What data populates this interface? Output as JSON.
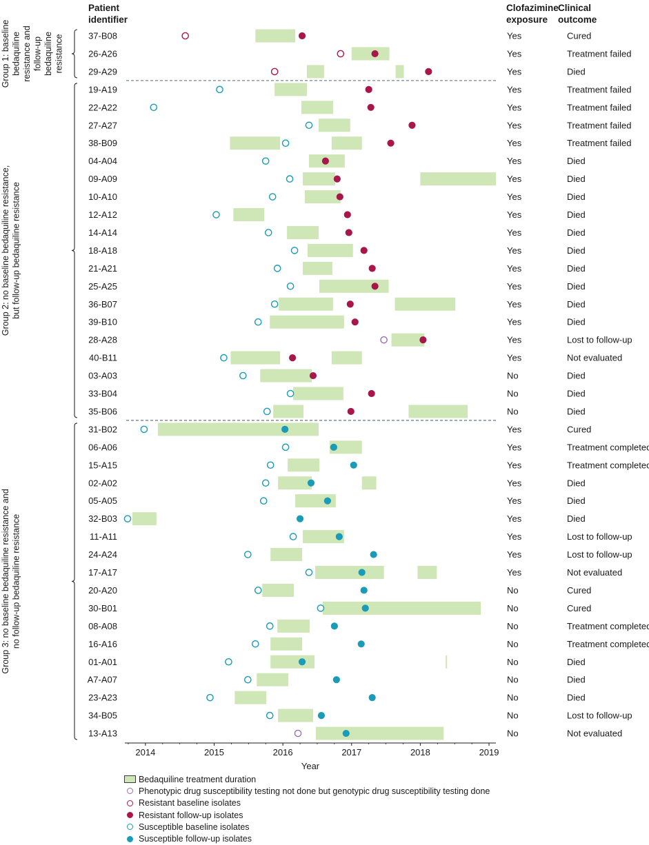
{
  "column_headers": {
    "patient": [
      "Patient",
      "identifier"
    ],
    "clofazimine": [
      "Clofazimine",
      "exposure"
    ],
    "outcome": [
      "Clinical",
      "outcome"
    ]
  },
  "groups": [
    {
      "label_lines": [
        "Group 1: baseline",
        "bedaquiline",
        "resistance and",
        "follow-up",
        "bedaquiline",
        "resistance"
      ]
    },
    {
      "label_lines": [
        "Group 2: no baseline bedaquiline resistance,",
        "but follow-up bedaquiline resistance"
      ]
    },
    {
      "label_lines": [
        "Group 3: no baseline bedaquiline resistance and",
        "no follow-up bedaquiline resistance"
      ]
    }
  ],
  "colors": {
    "bar_fill": "#cfe6b6",
    "resistant": "#a8174a",
    "susceptible": "#1a9bb8",
    "phenotypic_not_done": "#9a6fb0",
    "separator": "#55607a"
  },
  "chart_data": {
    "type": "timeline",
    "xlabel": "Year",
    "xlim": [
      2013.7,
      2019.1
    ],
    "xticks": [
      "2014",
      "2015",
      "2016",
      "2017",
      "2018",
      "2019"
    ],
    "legend": [
      {
        "symbol": "bar",
        "label": "Bedaquiline treatment duration"
      },
      {
        "symbol": "open-purple",
        "label": "Phenotypic drug susceptibility testing not done but genotypic drug susceptibility testing done"
      },
      {
        "symbol": "open-resistant",
        "label": "Resistant baseline isolates"
      },
      {
        "symbol": "filled-resistant",
        "label": "Resistant follow-up isolates"
      },
      {
        "symbol": "open-susceptible",
        "label": "Susceptible baseline isolates"
      },
      {
        "symbol": "filled-susceptible",
        "label": "Susceptible follow-up isolates"
      }
    ],
    "patients": [
      {
        "id": "37-B08",
        "group": 1,
        "clofazimine": "Yes",
        "outcome": "Cured",
        "bars": [
          [
            2015.6,
            2016.18
          ]
        ],
        "baseline": {
          "x": 2014.58,
          "type": "resistant"
        },
        "followup": {
          "x": 2016.28,
          "type": "resistant"
        }
      },
      {
        "id": "26-A26",
        "group": 1,
        "clofazimine": "Yes",
        "outcome": "Treatment failed",
        "bars": [
          [
            2017.0,
            2017.55
          ]
        ],
        "baseline": {
          "x": 2016.84,
          "type": "resistant"
        },
        "followup": {
          "x": 2017.34,
          "type": "resistant"
        }
      },
      {
        "id": "29-A29",
        "group": 1,
        "clofazimine": "Yes",
        "outcome": "Died",
        "bars": [
          [
            2016.35,
            2016.6
          ],
          [
            2017.64,
            2017.76
          ]
        ],
        "baseline": {
          "x": 2015.88,
          "type": "resistant"
        },
        "followup": {
          "x": 2018.12,
          "type": "resistant"
        }
      },
      {
        "id": "19-A19",
        "group": 2,
        "clofazimine": "Yes",
        "outcome": "Treatment failed",
        "bars": [
          [
            2015.88,
            2016.35
          ]
        ],
        "baseline": {
          "x": 2015.08,
          "type": "susceptible"
        },
        "followup": {
          "x": 2017.25,
          "type": "resistant"
        }
      },
      {
        "id": "22-A22",
        "group": 2,
        "clofazimine": "Yes",
        "outcome": "Treatment failed",
        "bars": [
          [
            2016.27,
            2016.73
          ]
        ],
        "baseline": {
          "x": 2014.12,
          "type": "susceptible"
        },
        "followup": {
          "x": 2017.28,
          "type": "resistant"
        }
      },
      {
        "id": "27-A27",
        "group": 2,
        "clofazimine": "Yes",
        "outcome": "Treatment failed",
        "bars": [
          [
            2016.52,
            2016.98
          ]
        ],
        "baseline": {
          "x": 2016.38,
          "type": "susceptible"
        },
        "followup": {
          "x": 2017.88,
          "type": "resistant"
        }
      },
      {
        "id": "38-B09",
        "group": 2,
        "clofazimine": "Yes",
        "outcome": "Treatment failed",
        "bars": [
          [
            2015.23,
            2015.96
          ],
          [
            2016.71,
            2017.15
          ]
        ],
        "baseline": {
          "x": 2016.04,
          "type": "susceptible"
        },
        "followup": {
          "x": 2017.57,
          "type": "resistant"
        }
      },
      {
        "id": "04-A04",
        "group": 2,
        "clofazimine": "Yes",
        "outcome": "Died",
        "bars": [
          [
            2016.38,
            2016.9
          ]
        ],
        "baseline": {
          "x": 2015.75,
          "type": "susceptible"
        },
        "followup": {
          "x": 2016.62,
          "type": "resistant"
        }
      },
      {
        "id": "09-A09",
        "group": 2,
        "clofazimine": "Yes",
        "outcome": "Died",
        "bars": [
          [
            2016.29,
            2016.76
          ],
          [
            2018.0,
            2019.1
          ]
        ],
        "baseline": {
          "x": 2016.1,
          "type": "susceptible"
        },
        "followup": {
          "x": 2016.79,
          "type": "resistant"
        }
      },
      {
        "id": "10-A10",
        "group": 2,
        "clofazimine": "Yes",
        "outcome": "Died",
        "bars": [
          [
            2016.32,
            2016.84
          ]
        ],
        "baseline": {
          "x": 2015.85,
          "type": "susceptible"
        },
        "followup": {
          "x": 2016.83,
          "type": "resistant"
        }
      },
      {
        "id": "12-A12",
        "group": 2,
        "clofazimine": "Yes",
        "outcome": "Died",
        "bars": [
          [
            2015.28,
            2015.73
          ]
        ],
        "baseline": {
          "x": 2015.03,
          "type": "susceptible"
        },
        "followup": {
          "x": 2016.94,
          "type": "resistant"
        }
      },
      {
        "id": "14-A14",
        "group": 2,
        "clofazimine": "Yes",
        "outcome": "Died",
        "bars": [
          [
            2016.06,
            2016.52
          ]
        ],
        "baseline": {
          "x": 2015.79,
          "type": "susceptible"
        },
        "followup": {
          "x": 2016.96,
          "type": "resistant"
        }
      },
      {
        "id": "18-A18",
        "group": 2,
        "clofazimine": "Yes",
        "outcome": "Died",
        "bars": [
          [
            2016.36,
            2017.02
          ]
        ],
        "baseline": {
          "x": 2016.17,
          "type": "susceptible"
        },
        "followup": {
          "x": 2017.18,
          "type": "resistant"
        }
      },
      {
        "id": "21-A21",
        "group": 2,
        "clofazimine": "Yes",
        "outcome": "Died",
        "bars": [
          [
            2016.29,
            2016.72
          ]
        ],
        "baseline": {
          "x": 2015.92,
          "type": "susceptible"
        },
        "followup": {
          "x": 2017.3,
          "type": "resistant"
        }
      },
      {
        "id": "25-A25",
        "group": 2,
        "clofazimine": "Yes",
        "outcome": "Died",
        "bars": [
          [
            2016.53,
            2017.54
          ]
        ],
        "baseline": {
          "x": 2016.11,
          "type": "susceptible"
        },
        "followup": {
          "x": 2017.34,
          "type": "resistant"
        }
      },
      {
        "id": "36-B07",
        "group": 2,
        "clofazimine": "Yes",
        "outcome": "Died",
        "bars": [
          [
            2015.94,
            2016.73
          ],
          [
            2017.63,
            2018.51
          ]
        ],
        "baseline": {
          "x": 2015.88,
          "type": "susceptible"
        },
        "followup": {
          "x": 2016.98,
          "type": "resistant"
        }
      },
      {
        "id": "39-B10",
        "group": 2,
        "clofazimine": "Yes",
        "outcome": "Died",
        "bars": [
          [
            2015.81,
            2016.89
          ]
        ],
        "baseline": {
          "x": 2015.64,
          "type": "susceptible"
        },
        "followup": {
          "x": 2017.05,
          "type": "resistant"
        }
      },
      {
        "id": "28-A28",
        "group": 2,
        "clofazimine": "Yes",
        "outcome": "Lost to follow-up",
        "bars": [
          [
            2017.58,
            2018.06
          ]
        ],
        "baseline": {
          "x": 2017.47,
          "type": "phenotypic"
        },
        "followup": {
          "x": 2018.04,
          "type": "resistant"
        }
      },
      {
        "id": "40-B11",
        "group": 2,
        "clofazimine": "Yes",
        "outcome": "Not evaluated",
        "bars": [
          [
            2015.24,
            2015.96
          ],
          [
            2016.71,
            2017.15
          ]
        ],
        "baseline": {
          "x": 2015.14,
          "type": "susceptible"
        },
        "followup": {
          "x": 2016.14,
          "type": "resistant"
        }
      },
      {
        "id": "03-A03",
        "group": 2,
        "clofazimine": "No",
        "outcome": "Died",
        "bars": [
          [
            2015.67,
            2016.42
          ]
        ],
        "baseline": {
          "x": 2015.42,
          "type": "susceptible"
        },
        "followup": {
          "x": 2016.44,
          "type": "resistant"
        }
      },
      {
        "id": "33-B04",
        "group": 2,
        "clofazimine": "No",
        "outcome": "Died",
        "bars": [
          [
            2016.15,
            2016.88
          ]
        ],
        "baseline": {
          "x": 2016.11,
          "type": "susceptible"
        },
        "followup": {
          "x": 2017.29,
          "type": "resistant"
        }
      },
      {
        "id": "35-B06",
        "group": 2,
        "clofazimine": "No",
        "outcome": "Died",
        "bars": [
          [
            2015.86,
            2016.3
          ],
          [
            2017.83,
            2018.69
          ]
        ],
        "baseline": {
          "x": 2015.77,
          "type": "susceptible"
        },
        "followup": {
          "x": 2016.99,
          "type": "resistant"
        }
      },
      {
        "id": "31-B02",
        "group": 3,
        "clofazimine": "Yes",
        "outcome": "Cured",
        "bars": [
          [
            2014.18,
            2016.52
          ]
        ],
        "baseline": {
          "x": 2013.98,
          "type": "susceptible"
        },
        "followup": {
          "x": 2016.03,
          "type": "susceptible"
        }
      },
      {
        "id": "06-A06",
        "group": 3,
        "clofazimine": "Yes",
        "outcome": "Treatment completed",
        "bars": [
          [
            2016.68,
            2017.15
          ]
        ],
        "baseline": {
          "x": 2016.04,
          "type": "susceptible"
        },
        "followup": {
          "x": 2016.74,
          "type": "susceptible"
        }
      },
      {
        "id": "15-A15",
        "group": 3,
        "clofazimine": "Yes",
        "outcome": "Treatment completed",
        "bars": [
          [
            2016.07,
            2016.53
          ]
        ],
        "baseline": {
          "x": 2015.82,
          "type": "susceptible"
        },
        "followup": {
          "x": 2017.03,
          "type": "susceptible"
        }
      },
      {
        "id": "02-A02",
        "group": 3,
        "clofazimine": "Yes",
        "outcome": "Died",
        "bars": [
          [
            2015.93,
            2016.42
          ],
          [
            2017.15,
            2017.36
          ]
        ],
        "baseline": {
          "x": 2015.75,
          "type": "susceptible"
        },
        "followup": {
          "x": 2016.41,
          "type": "susceptible"
        }
      },
      {
        "id": "05-A05",
        "group": 3,
        "clofazimine": "Yes",
        "outcome": "Died",
        "bars": [
          [
            2016.18,
            2016.77
          ]
        ],
        "baseline": {
          "x": 2015.72,
          "type": "susceptible"
        },
        "followup": {
          "x": 2016.65,
          "type": "susceptible"
        }
      },
      {
        "id": "32-B03",
        "group": 3,
        "clofazimine": "Yes",
        "outcome": "Died",
        "bars": [
          [
            2013.81,
            2014.16
          ]
        ],
        "baseline": {
          "x": 2013.74,
          "type": "susceptible"
        },
        "followup": {
          "x": 2016.25,
          "type": "susceptible"
        }
      },
      {
        "id": "11-A11",
        "group": 3,
        "clofazimine": "Yes",
        "outcome": "Lost to follow-up",
        "bars": [
          [
            2016.29,
            2016.89
          ]
        ],
        "baseline": {
          "x": 2016.15,
          "type": "susceptible"
        },
        "followup": {
          "x": 2016.82,
          "type": "susceptible"
        }
      },
      {
        "id": "24-A24",
        "group": 3,
        "clofazimine": "Yes",
        "outcome": "Lost to follow-up",
        "bars": [
          [
            2015.82,
            2016.28
          ]
        ],
        "baseline": {
          "x": 2015.49,
          "type": "susceptible"
        },
        "followup": {
          "x": 2017.32,
          "type": "susceptible"
        }
      },
      {
        "id": "17-A17",
        "group": 3,
        "clofazimine": "Yes",
        "outcome": "Not evaluated",
        "bars": [
          [
            2016.47,
            2017.47
          ],
          [
            2017.96,
            2018.24
          ]
        ],
        "baseline": {
          "x": 2016.38,
          "type": "susceptible"
        },
        "followup": {
          "x": 2017.15,
          "type": "susceptible"
        }
      },
      {
        "id": "20-A20",
        "group": 3,
        "clofazimine": "No",
        "outcome": "Cured",
        "bars": [
          [
            2015.7,
            2016.16
          ]
        ],
        "baseline": {
          "x": 2015.64,
          "type": "susceptible"
        },
        "followup": {
          "x": 2017.18,
          "type": "susceptible"
        }
      },
      {
        "id": "30-B01",
        "group": 3,
        "clofazimine": "No",
        "outcome": "Cured",
        "bars": [
          [
            2016.58,
            2018.88
          ]
        ],
        "baseline": {
          "x": 2016.55,
          "type": "susceptible"
        },
        "followup": {
          "x": 2017.2,
          "type": "susceptible"
        }
      },
      {
        "id": "08-A08",
        "group": 3,
        "clofazimine": "No",
        "outcome": "Treatment completed",
        "bars": [
          [
            2015.92,
            2016.39
          ]
        ],
        "baseline": {
          "x": 2015.81,
          "type": "susceptible"
        },
        "followup": {
          "x": 2016.75,
          "type": "susceptible"
        }
      },
      {
        "id": "16-A16",
        "group": 3,
        "clofazimine": "No",
        "outcome": "Treatment completed",
        "bars": [
          [
            2015.82,
            2016.28
          ]
        ],
        "baseline": {
          "x": 2015.6,
          "type": "susceptible"
        },
        "followup": {
          "x": 2017.14,
          "type": "susceptible"
        }
      },
      {
        "id": "01-A01",
        "group": 3,
        "clofazimine": "No",
        "outcome": "Died",
        "bars": [
          [
            2015.82,
            2016.46
          ],
          [
            2018.37,
            2018.39
          ]
        ],
        "baseline": {
          "x": 2015.21,
          "type": "susceptible"
        },
        "followup": {
          "x": 2016.28,
          "type": "susceptible"
        }
      },
      {
        "id": "A7-A07",
        "group": 3,
        "clofazimine": "No",
        "outcome": "Died",
        "bars": [
          [
            2015.62,
            2016.08
          ]
        ],
        "baseline": {
          "x": 2015.49,
          "type": "susceptible"
        },
        "followup": {
          "x": 2016.78,
          "type": "susceptible"
        }
      },
      {
        "id": "23-A23",
        "group": 3,
        "clofazimine": "No",
        "outcome": "Died",
        "bars": [
          [
            2015.3,
            2015.76
          ]
        ],
        "baseline": {
          "x": 2014.94,
          "type": "susceptible"
        },
        "followup": {
          "x": 2017.3,
          "type": "susceptible"
        }
      },
      {
        "id": "34-B05",
        "group": 3,
        "clofazimine": "No",
        "outcome": "Lost to follow-up",
        "bars": [
          [
            2015.93,
            2016.44
          ]
        ],
        "baseline": {
          "x": 2015.81,
          "type": "susceptible"
        },
        "followup": {
          "x": 2016.56,
          "type": "susceptible"
        }
      },
      {
        "id": "13-A13",
        "group": 3,
        "clofazimine": "No",
        "outcome": "Not evaluated",
        "bars": [
          [
            2016.48,
            2018.34
          ]
        ],
        "baseline": {
          "x": 2016.22,
          "type": "phenotypic"
        },
        "followup": {
          "x": 2016.92,
          "type": "susceptible"
        }
      }
    ]
  }
}
